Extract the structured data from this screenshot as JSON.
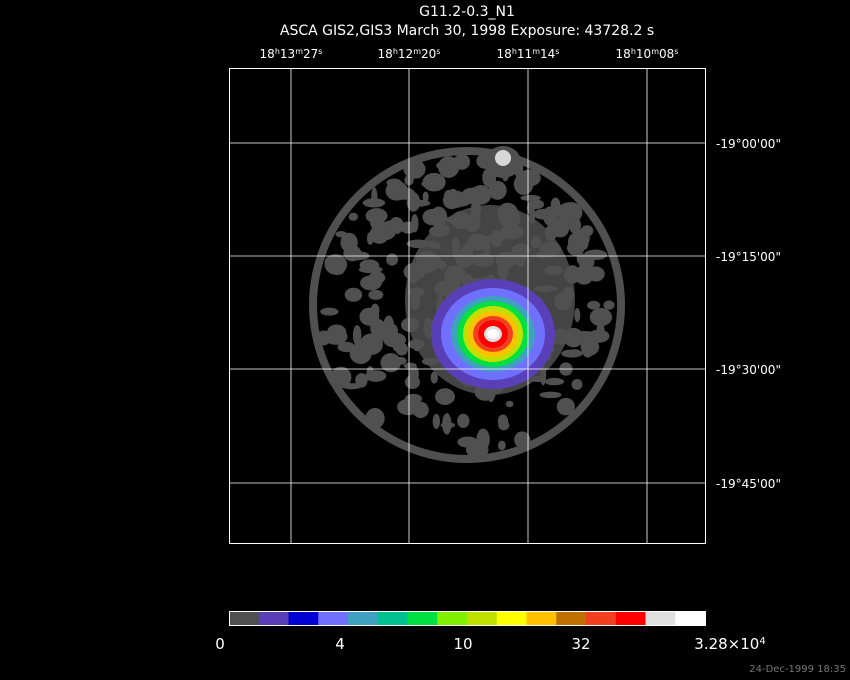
{
  "title": "G11.2-0.3_N1",
  "subtitle": "ASCA GIS2,GIS3 March 30, 1998 Exposure: 43728.2 s",
  "ra_labels": [
    [
      "18",
      "h",
      "13",
      "m",
      "27",
      "s"
    ],
    [
      "18",
      "h",
      "12",
      "m",
      "20",
      "s"
    ],
    [
      "18",
      "h",
      "11",
      "m",
      "14",
      "s"
    ],
    [
      "18",
      "h",
      "10",
      "m",
      "08",
      "s"
    ]
  ],
  "dec_labels": [
    "-19°00'00\"",
    "-19°15'00\"",
    "-19°30'00\"",
    "-19°45'00\""
  ],
  "colorbar": {
    "colors": [
      "#505050",
      "#5a40b8",
      "#0000d0",
      "#7070ff",
      "#40a0c0",
      "#00c090",
      "#00e040",
      "#80f000",
      "#c0e000",
      "#ffff00",
      "#ffc000",
      "#c07000",
      "#f04020",
      "#ff0000",
      "#e0e0e0",
      "#ffffff"
    ],
    "labels": [
      [
        "0"
      ],
      [
        "4"
      ],
      [
        "10"
      ],
      [
        "32"
      ],
      [
        "3.28×10",
        "4"
      ]
    ]
  },
  "timestamp": "24-Dec-1999 18:35"
}
